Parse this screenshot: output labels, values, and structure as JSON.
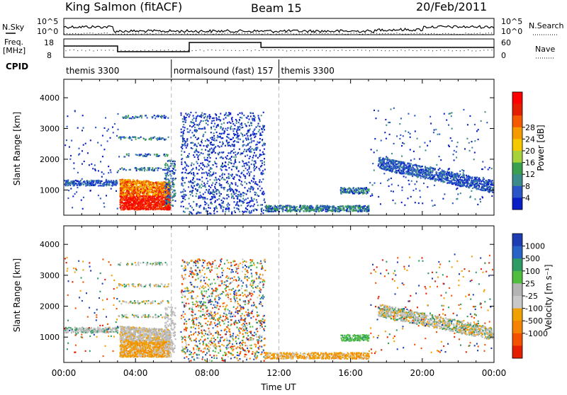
{
  "header": {
    "station": "King Salmon (fitACF)",
    "beam": "Beam 15",
    "date": "20/Feb/2011"
  },
  "top_strip": {
    "nsky_label": "N.Sky",
    "nsearch_label": "N.Search",
    "left_ticks": [
      "10^5",
      "10^0"
    ],
    "right_ticks": [
      "10^5",
      "10^0"
    ],
    "freq_label_1": "Freq.",
    "freq_label_2": "[MHz]",
    "freq_ticks": [
      "18",
      "8"
    ],
    "nave_label": "Nave",
    "nave_ticks": [
      "60",
      "0"
    ],
    "cpid_label": "CPID"
  },
  "cpid_segments": [
    {
      "label": "themis 3300",
      "start_hour": 0
    },
    {
      "label": "normalsound (fast) 157",
      "start_hour": 6
    },
    {
      "label": "themis 3300",
      "start_hour": 12
    }
  ],
  "chart_data": [
    {
      "type": "heatmap",
      "quantity": "Power",
      "ylabel": "Slant Range [km]",
      "xlabel": "",
      "xlim": [
        0,
        24
      ],
      "ylim": [
        180,
        4600
      ],
      "yticks": [
        "1000",
        "2000",
        "3000",
        "4000"
      ],
      "colorbar": {
        "label": "Power [dB]",
        "ticks": [
          "4",
          "8",
          "12",
          "16",
          "20",
          "24",
          "28"
        ],
        "colors": [
          "#0a1ec8",
          "#2a55c8",
          "#3d8c8c",
          "#3aa050",
          "#a6d23c",
          "#f5c800",
          "#f59b00",
          "#f55a00",
          "#e61e00",
          "#ff0000"
        ]
      }
    },
    {
      "type": "heatmap",
      "quantity": "Velocity",
      "ylabel": "Slant Range [km]",
      "xlabel": "Time UT",
      "xlim": [
        0,
        24
      ],
      "ylim": [
        180,
        4600
      ],
      "yticks": [
        "1000",
        "2000",
        "3000",
        "4000"
      ],
      "xticks": [
        "00:00",
        "04:00",
        "08:00",
        "12:00",
        "16:00",
        "20:00",
        "00:00"
      ],
      "colorbar": {
        "label": "Velocity [m s⁻¹]",
        "ticks": [
          "1000",
          "500",
          "100",
          "25",
          "-25",
          "-100",
          "-500",
          "-1000"
        ],
        "colors": [
          "#1e3cb4",
          "#2864c8",
          "#2d9b64",
          "#50be3c",
          "#b4b4b4",
          "#c8c8c8",
          "#f0a000",
          "#f58200",
          "#f55000",
          "#e61e00"
        ]
      }
    }
  ]
}
